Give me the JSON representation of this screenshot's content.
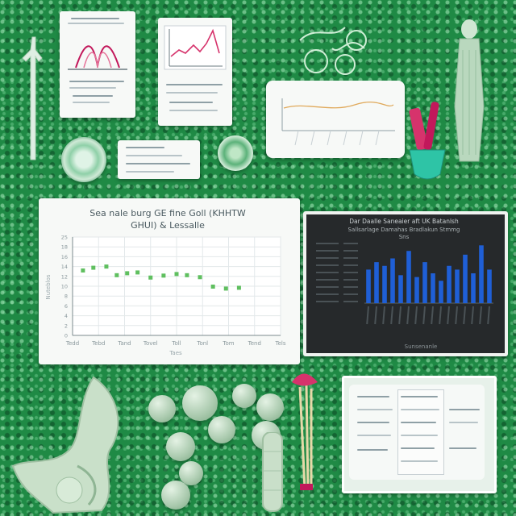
{
  "scene": {
    "background_color": "#1f8a45",
    "accent_magenta": "#d6336c",
    "accent_teal": "#2ec4a6",
    "bar_blue": "#1f5fd6"
  },
  "green_chart_card": {
    "title_line1": "Sea nale burg GE fine Goll (KHHTW",
    "title_line2": "GHUI) & Lessalle",
    "y_tick_labels": [
      "25",
      "18",
      "16",
      "14",
      "12",
      "10",
      "8",
      "6",
      "4",
      "2",
      "0"
    ],
    "x_tick_labels": [
      "Tedd",
      "Tebd",
      "Tand",
      "Tovel",
      "Toll",
      "Tonl",
      "Tom",
      "Tend",
      "Tels"
    ],
    "xlabel": "Taes",
    "ylabel": "Nuteblos"
  },
  "chart_data": [
    {
      "type": "scatter",
      "title": "Sea nale burg GE fine Goll (KHHTW GHUI) & Lessalle",
      "xlabel": "Taes",
      "ylabel": "Nuteblos",
      "ylim": [
        0,
        25
      ],
      "grid": true,
      "series": [
        {
          "color": "#5fbf5f",
          "x": [
            1.4,
            1.8,
            2.3,
            2.7,
            3.1,
            3.5,
            4.0,
            4.5,
            5.0,
            5.4,
            5.9,
            6.4,
            6.9,
            7.4
          ],
          "y": [
            16.5,
            17.2,
            17.5,
            15.3,
            15.8,
            16.0,
            14.7,
            15.2,
            15.6,
            15.3,
            14.8,
            12.4,
            11.9,
            12.1
          ]
        }
      ]
    },
    {
      "type": "bar",
      "title": "Dar Daalle Saneaier aft UK Batanlsh",
      "values": [
        18,
        22,
        20,
        24,
        15,
        28,
        14,
        22,
        16,
        12,
        20,
        18,
        26,
        16,
        31,
        18
      ],
      "ylim": [
        0,
        32
      ],
      "grid": false
    }
  ],
  "dark_chart_card": {
    "title_line1": "Dar Daalle Saneaier aft UK Batanlsh",
    "title_line2": "Sallsarlage Damahas Bradlakun Stmmg",
    "title_line3": "Sns",
    "footer_label": "Sunsenanle"
  }
}
